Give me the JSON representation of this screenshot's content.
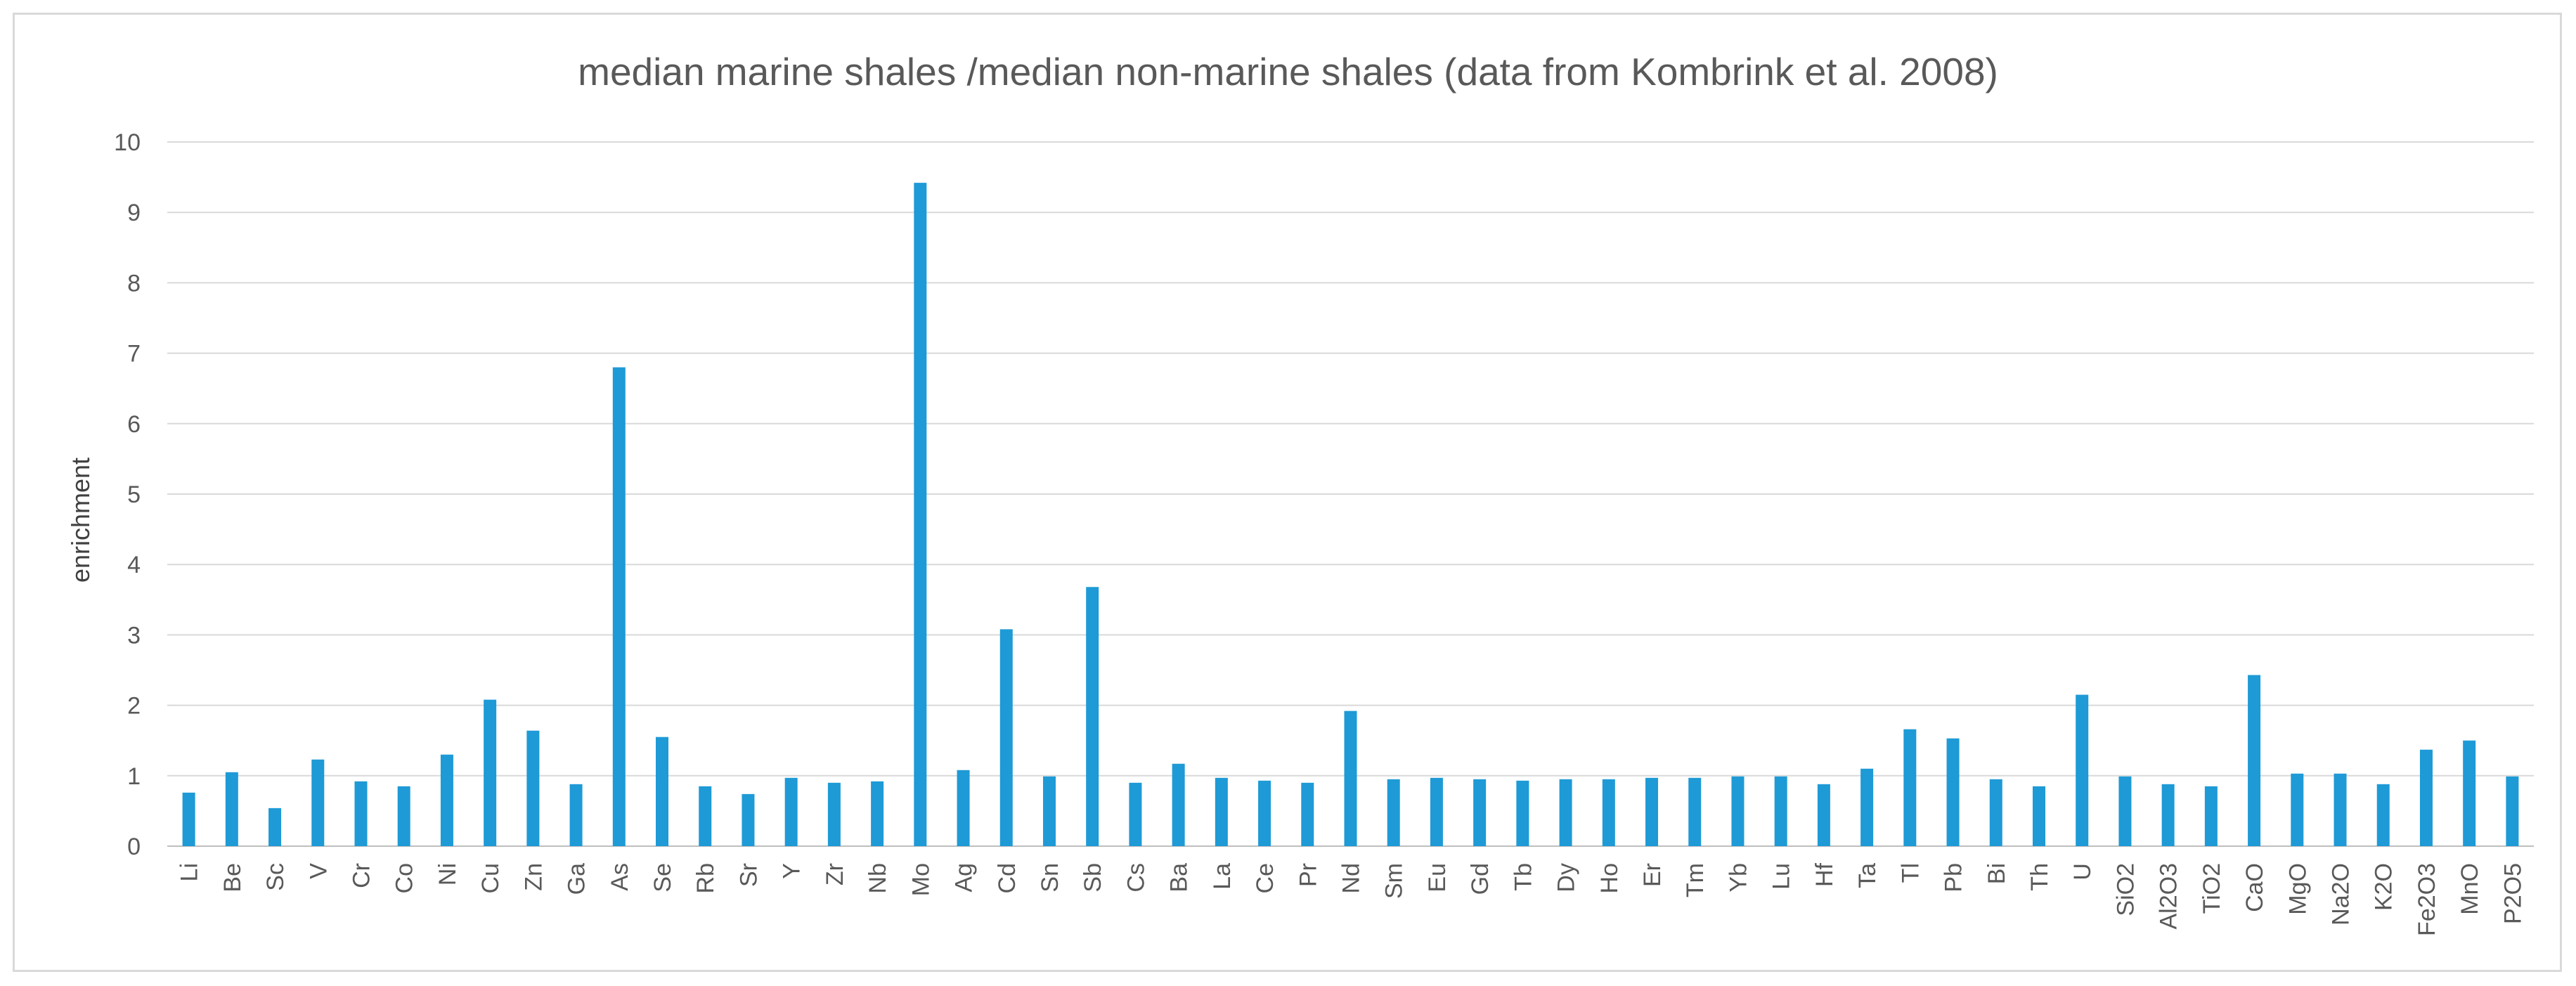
{
  "chart_data": {
    "type": "bar",
    "title": "median marine shales /median non-marine shales (data from Kombrink et al. 2008)",
    "xlabel": "",
    "ylabel": "enrichment",
    "ylim": [
      0,
      10
    ],
    "yticks": [
      "0",
      "1",
      "2",
      "3",
      "4",
      "5",
      "6",
      "7",
      "8",
      "9",
      "10"
    ],
    "grid": true,
    "bar_color": "#1e9ad6",
    "categories": [
      "Li",
      "Be",
      "Sc",
      "V",
      "Cr",
      "Co",
      "Ni",
      "Cu",
      "Zn",
      "Ga",
      "As",
      "Se",
      "Rb",
      "Sr",
      "Y",
      "Zr",
      "Nb",
      "Mo",
      "Ag",
      "Cd",
      "Sn",
      "Sb",
      "Cs",
      "Ba",
      "La",
      "Ce",
      "Pr",
      "Nd",
      "Sm",
      "Eu",
      "Gd",
      "Tb",
      "Dy",
      "Ho",
      "Er",
      "Tm",
      "Yb",
      "Lu",
      "Hf",
      "Ta",
      "Tl",
      "Pb",
      "Bi",
      "Th",
      "U",
      "SiO2",
      "Al2O3",
      "TiO2",
      "CaO",
      "MgO",
      "Na2O",
      "K2O",
      "Fe2O3",
      "MnO",
      "P2O5"
    ],
    "values": [
      0.76,
      1.05,
      0.54,
      1.23,
      0.92,
      0.85,
      1.3,
      2.08,
      1.64,
      0.88,
      6.8,
      1.55,
      0.85,
      0.74,
      0.97,
      0.9,
      0.92,
      9.42,
      1.08,
      3.08,
      0.99,
      3.68,
      0.9,
      1.17,
      0.97,
      0.93,
      0.9,
      1.92,
      0.95,
      0.97,
      0.95,
      0.93,
      0.95,
      0.95,
      0.97,
      0.97,
      0.99,
      0.99,
      0.88,
      1.1,
      1.66,
      1.53,
      0.95,
      0.85,
      2.15,
      0.99,
      0.88,
      0.85,
      2.43,
      1.03,
      1.03,
      0.88,
      1.37,
      1.5,
      0.99
    ]
  }
}
